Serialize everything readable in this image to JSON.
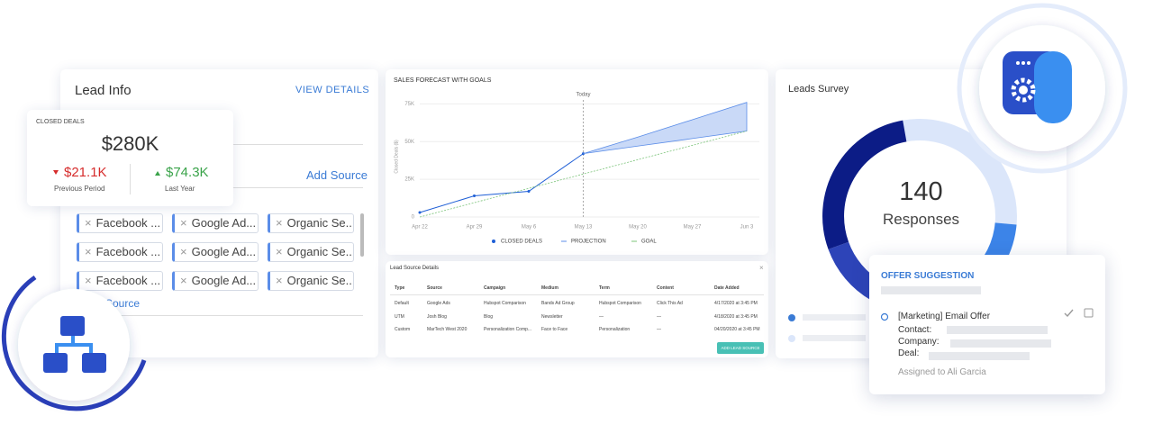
{
  "lead_info": {
    "title": "Lead Info",
    "view_details": "VIEW DETAILS",
    "add_source": "Add Source",
    "bottom_link": "Source",
    "tags": [
      [
        "Facebook ...",
        "Google Ad...",
        "Organic Se..."
      ],
      [
        "Facebook ...",
        "Google Ad...",
        "Organic Se..."
      ],
      [
        "Facebook ...",
        "Google Ad...",
        "Organic Se..."
      ]
    ]
  },
  "closed_deals": {
    "label": "CLOSED DEALS",
    "value": "$280K",
    "previous": {
      "value": "$21.1K",
      "label": "Previous Period"
    },
    "last_year": {
      "value": "$74.3K",
      "label": "Last Year"
    }
  },
  "chart_data": {
    "type": "line",
    "title": "SALES FORECAST WITH GOALS",
    "y_label": "Closed Deals ($)",
    "annotation": "Today",
    "categories": [
      "Apr 22",
      "Apr 29",
      "May 6",
      "May 13",
      "May 20",
      "May 27",
      "Jun 3"
    ],
    "ylim": [
      0,
      80000
    ],
    "yticks": [
      0,
      {
        "value": 25000,
        "label": "25K"
      },
      {
        "value": 50000,
        "label": "50K"
      },
      {
        "value": 75000,
        "label": "75K"
      }
    ],
    "grid": true,
    "series": [
      {
        "name": "CLOSED DEALS",
        "color": "#1f5fd6",
        "values": [
          3000,
          14000,
          17000,
          42000,
          null,
          null,
          null
        ]
      },
      {
        "name": "PROJECTION",
        "color": "#5b8de8",
        "values": [
          null,
          null,
          null,
          42000,
          53000,
          64500,
          76000
        ],
        "lower": [
          null,
          null,
          null,
          42000,
          47000,
          52000,
          57000
        ]
      },
      {
        "name": "GOAL",
        "color": "#7cc47a",
        "values": [
          0,
          9500,
          19000,
          28500,
          38000,
          47500,
          57000
        ]
      }
    ]
  },
  "lead_table": {
    "title": "Lead Source Details",
    "headers": [
      "Type",
      "Source",
      "Campaign",
      "Medium",
      "Term",
      "Content",
      "Date Added"
    ],
    "rows": [
      [
        "Default",
        "Google Ads",
        "Hubspot Comparison",
        "Bands Ad Group",
        "Hubspot Comparison",
        "Click This Ad",
        "4/17/2020 at 3:45 PM"
      ],
      [
        "UTM",
        "Josh Blog",
        "Blog",
        "Newsletter",
        "—",
        "—",
        "4/18/2020 at 3:45 PM"
      ],
      [
        "Custom",
        "MarTech West 2020",
        "Personalization Comp...",
        "Face to Face",
        "Personalization",
        "—",
        "04/20/2020 at 3:45 PM"
      ]
    ],
    "button": "ADD LEAD SOURCE"
  },
  "survey": {
    "title": "Leads Survey",
    "count": "140",
    "count_label": "Responses"
  },
  "offer": {
    "title": "OFFER SUGGESTION",
    "item": "[Marketing] Email Offer",
    "contact": "Contact:",
    "company": "Company:",
    "deal": "Deal:",
    "assigned": "Assigned to Ali Garcia"
  }
}
